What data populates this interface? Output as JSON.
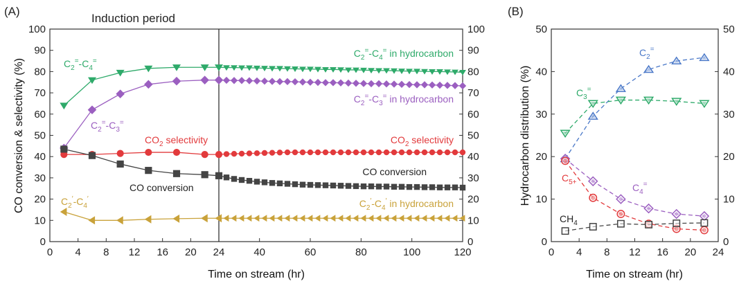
{
  "chart_data": [
    {
      "panel_label": "(A)",
      "type": "line",
      "xlabel": "Time on stream (hr)",
      "ylabel": "CO conversion & selectivity (%)",
      "ylim": [
        0,
        100
      ],
      "x_ticks_left": [
        "0",
        "4",
        "8",
        "12",
        "16",
        "20",
        "24"
      ],
      "x_ticks_right": [
        "40",
        "60",
        "80",
        "100",
        "120"
      ],
      "y_ticks": [
        "0",
        "10",
        "20",
        "30",
        "40",
        "50",
        "60",
        "70",
        "80",
        "90",
        "100"
      ],
      "induction_label": "Induction period",
      "divider_at": 24,
      "series": [
        {
          "name": "C2=-C4=",
          "color": "#2eaa6a",
          "marker": "triangle-down",
          "x": [
            2,
            6,
            10,
            14,
            18,
            22,
            24,
            27,
            30,
            33,
            36,
            39,
            42,
            45,
            48,
            51,
            54,
            57,
            60,
            63,
            66,
            69,
            72,
            75,
            78,
            81,
            84,
            87,
            90,
            93,
            96,
            99,
            102,
            105,
            108,
            111,
            114,
            117,
            120
          ],
          "y": [
            64,
            76,
            79.5,
            81.5,
            82,
            82,
            82,
            81.9,
            81.9,
            81.8,
            81.8,
            81.7,
            81.6,
            81.5,
            81.5,
            81.4,
            81.3,
            81.2,
            81.2,
            81.1,
            81,
            81,
            80.9,
            80.8,
            80.8,
            80.7,
            80.6,
            80.5,
            80.5,
            80.4,
            80.3,
            80.2,
            80.2,
            80.1,
            80,
            80,
            79.9,
            79.8,
            79.7
          ]
        },
        {
          "name": "C2=-C3=",
          "color": "#9b5fc0",
          "marker": "diamond",
          "x": [
            2,
            6,
            10,
            14,
            18,
            22,
            24,
            27,
            30,
            33,
            36,
            39,
            42,
            45,
            48,
            51,
            54,
            57,
            60,
            63,
            66,
            69,
            72,
            75,
            78,
            81,
            84,
            87,
            90,
            93,
            96,
            99,
            102,
            105,
            108,
            111,
            114,
            117,
            120
          ],
          "y": [
            44,
            62,
            69.5,
            74,
            75.5,
            76,
            76,
            75.9,
            75.8,
            75.8,
            75.7,
            75.6,
            75.5,
            75.4,
            75.3,
            75.3,
            75.2,
            75.1,
            75,
            74.9,
            74.8,
            74.8,
            74.7,
            74.6,
            74.5,
            74.4,
            74.3,
            74.3,
            74.2,
            74.1,
            74,
            73.9,
            73.8,
            73.8,
            73.7,
            73.6,
            73.5,
            73.4,
            73.3
          ]
        },
        {
          "name": "CO2 selectivity",
          "color": "#e23a3c",
          "marker": "circle",
          "x": [
            2,
            6,
            10,
            14,
            18,
            22,
            24,
            27,
            30,
            33,
            36,
            39,
            42,
            45,
            48,
            51,
            54,
            57,
            60,
            63,
            66,
            69,
            72,
            75,
            78,
            81,
            84,
            87,
            90,
            93,
            96,
            99,
            102,
            105,
            108,
            111,
            114,
            117,
            120
          ],
          "y": [
            41,
            41,
            41.5,
            42,
            42,
            41,
            41,
            41.2,
            41.3,
            41.4,
            41.5,
            41.6,
            41.7,
            41.8,
            41.9,
            42,
            42,
            42,
            42,
            42,
            42,
            42,
            42,
            42,
            42,
            42,
            42,
            42,
            42,
            42,
            42,
            42,
            42,
            42,
            42,
            42,
            42,
            42,
            42
          ]
        },
        {
          "name": "CO conversion",
          "color": "#444444",
          "marker": "square",
          "x": [
            2,
            6,
            10,
            14,
            18,
            22,
            24,
            27,
            30,
            33,
            36,
            39,
            42,
            45,
            48,
            51,
            54,
            57,
            60,
            63,
            66,
            69,
            72,
            75,
            78,
            81,
            84,
            87,
            90,
            93,
            96,
            99,
            102,
            105,
            108,
            111,
            114,
            117,
            120
          ],
          "y": [
            43.5,
            40.5,
            36.5,
            33.5,
            32,
            31.5,
            31,
            30.2,
            29.5,
            29,
            28.6,
            28.2,
            27.9,
            27.6,
            27.4,
            27.2,
            27,
            26.8,
            26.7,
            26.6,
            26.5,
            26.4,
            26.3,
            26.2,
            26.1,
            26,
            26,
            25.9,
            25.9,
            25.8,
            25.8,
            25.7,
            25.7,
            25.6,
            25.6,
            25.5,
            25.5,
            25.5,
            25.4
          ]
        },
        {
          "name": "C2′-C4′",
          "color": "#c9a23a",
          "marker": "triangle-left",
          "x": [
            2,
            6,
            10,
            14,
            18,
            22,
            24,
            27,
            30,
            33,
            36,
            39,
            42,
            45,
            48,
            51,
            54,
            57,
            60,
            63,
            66,
            69,
            72,
            75,
            78,
            81,
            84,
            87,
            90,
            93,
            96,
            99,
            102,
            105,
            108,
            111,
            114,
            117,
            120
          ],
          "y": [
            14,
            10,
            10,
            10.5,
            10.8,
            11,
            11,
            11,
            11,
            11,
            11,
            11,
            11,
            11,
            11,
            11,
            11,
            11,
            11,
            11,
            11,
            11,
            11,
            11,
            11,
            11,
            11,
            11,
            11,
            11,
            11,
            11,
            11,
            11,
            11,
            11,
            11,
            11,
            11
          ]
        }
      ],
      "annotations": [
        {
          "text": "C2=-C4=",
          "base": "C",
          "sub1": "2",
          "sup1": "=",
          "mid": "-C",
          "sub2": "4",
          "sup2": "=",
          "tail": "",
          "color": "#2eaa6a"
        },
        {
          "text": "C2=-C3=",
          "base": "C",
          "sub1": "2",
          "sup1": "=",
          "mid": "-C",
          "sub2": "3",
          "sup2": "=",
          "tail": "",
          "color": "#9b5fc0"
        },
        {
          "text": "CO2 selectivity",
          "pre": "CO",
          "sub": "2",
          "post": " selectivity",
          "color": "#e23a3c"
        },
        {
          "text": "CO conversion",
          "color": "#222222"
        },
        {
          "text": "C2′-C4′",
          "base": "C",
          "sub1": "2",
          "sup1": "′",
          "mid": "-C",
          "sub2": "4",
          "sup2": "′",
          "tail": "",
          "color": "#c9a23a"
        },
        {
          "text": "C2=-C4= in hydrocarbon",
          "base": "C",
          "sub1": "2",
          "sup1": "=",
          "mid": "-C",
          "sub2": "4",
          "sup2": "=",
          "tail": " in hydrocarbon",
          "color": "#2eaa6a"
        },
        {
          "text": "C2=-C3= in hydrocarbon",
          "base": "C",
          "sub1": "2",
          "sup1": "=",
          "mid": "-C",
          "sub2": "3",
          "sup2": "=",
          "tail": " in hydrocarbon",
          "color": "#9b5fc0"
        },
        {
          "text": "CO2 selectivity",
          "pre": "CO",
          "sub": "2",
          "post": " selectivity",
          "color": "#e23a3c"
        },
        {
          "text": "CO conversion",
          "color": "#222222"
        },
        {
          "text": "C2′-C4′ in hydrocarbon",
          "base": "C",
          "sub1": "2",
          "sup1": "′",
          "mid": "-C",
          "sub2": "4",
          "sup2": "′",
          "tail": " in hydrocarbon",
          "color": "#c9a23a"
        }
      ]
    },
    {
      "panel_label": "(B)",
      "type": "line",
      "xlabel": "Time on stream (hr)",
      "ylabel": "Hydrocarbon distribution (%)",
      "xlim": [
        0,
        24
      ],
      "ylim": [
        0,
        50
      ],
      "x_ticks": [
        "0",
        "4",
        "8",
        "12",
        "16",
        "20",
        "24"
      ],
      "y_ticks": [
        "0",
        "10",
        "20",
        "30",
        "40",
        "50"
      ],
      "series": [
        {
          "name": "C2=",
          "color": "#4a78c8",
          "marker": "triangle-up",
          "x": [
            2,
            6,
            10,
            14,
            18,
            22
          ],
          "y": [
            19.5,
            29.5,
            36,
            40.5,
            42.5,
            43.3
          ]
        },
        {
          "name": "C3=",
          "color": "#2eaa6a",
          "marker": "triangle-down",
          "x": [
            2,
            6,
            10,
            14,
            18,
            22
          ],
          "y": [
            25.5,
            32.5,
            33.3,
            33.3,
            33,
            32.5
          ]
        },
        {
          "name": "C4=",
          "color": "#9b5fc0",
          "marker": "diamond",
          "x": [
            2,
            6,
            10,
            14,
            18,
            22
          ],
          "y": [
            19.5,
            14.2,
            10,
            7.8,
            6.5,
            6
          ]
        },
        {
          "name": "C5+",
          "color": "#e23a3c",
          "marker": "circle",
          "x": [
            2,
            6,
            10,
            14,
            18,
            22
          ],
          "y": [
            19,
            10.3,
            6.5,
            4.2,
            3,
            2.7
          ]
        },
        {
          "name": "CH4",
          "color": "#444444",
          "marker": "square",
          "x": [
            2,
            6,
            10,
            14,
            18,
            22
          ],
          "y": [
            2.5,
            3.5,
            4.2,
            4,
            4.3,
            4.4
          ]
        }
      ],
      "annotations": [
        {
          "text": "C2=",
          "base": "C",
          "sub": "2",
          "sup": "=",
          "color": "#4a78c8"
        },
        {
          "text": "C3=",
          "base": "C",
          "sub": "3",
          "sup": "=",
          "color": "#2eaa6a"
        },
        {
          "text": "C4=",
          "base": "C",
          "sub": "4",
          "sup": "=",
          "color": "#9b5fc0"
        },
        {
          "text": "C5+",
          "base": "C",
          "sub": "5+",
          "sup": "",
          "color": "#e23a3c"
        },
        {
          "text": "CH4",
          "base": "CH",
          "sub": "4",
          "sup": "",
          "color": "#222222"
        }
      ]
    }
  ]
}
